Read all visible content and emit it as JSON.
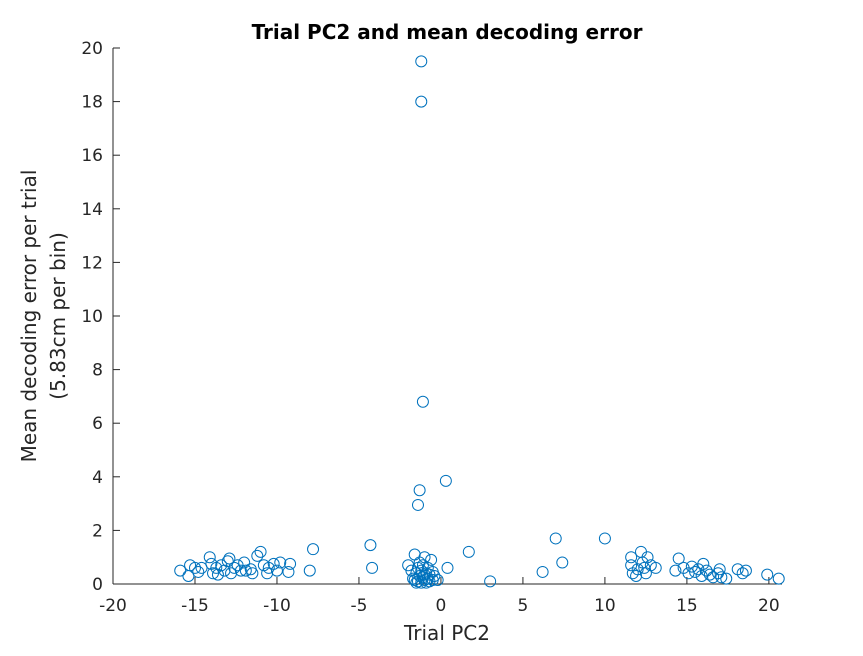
{
  "chart_data": {
    "type": "scatter",
    "title": "Trial PC2 and mean decoding error",
    "xlabel": "Trial PC2",
    "ylabel_lines": [
      "Mean decoding error per trial",
      "(5.83cm per bin)"
    ],
    "xlim": [
      -20,
      20.8
    ],
    "ylim": [
      0,
      20
    ],
    "xticks": [
      -20,
      -15,
      -10,
      -5,
      0,
      5,
      10,
      15,
      20
    ],
    "yticks": [
      0,
      2,
      4,
      6,
      8,
      10,
      12,
      14,
      16,
      18,
      20
    ],
    "grid": false,
    "marker": "open-circle",
    "series": [
      {
        "color": "#0072BD",
        "points": [
          [
            -1.2,
            19.5
          ],
          [
            -1.2,
            18.0
          ],
          [
            -1.1,
            6.8
          ],
          [
            -1.3,
            3.5
          ],
          [
            0.3,
            3.85
          ],
          [
            -1.4,
            2.95
          ],
          [
            -15.9,
            0.5
          ],
          [
            -15.4,
            0.3
          ],
          [
            -15.3,
            0.7
          ],
          [
            -15.0,
            0.6
          ],
          [
            -14.8,
            0.45
          ],
          [
            -14.6,
            0.6
          ],
          [
            -14.1,
            1.0
          ],
          [
            -14.0,
            0.75
          ],
          [
            -13.9,
            0.4
          ],
          [
            -13.7,
            0.6
          ],
          [
            -13.6,
            0.35
          ],
          [
            -13.4,
            0.7
          ],
          [
            -13.2,
            0.5
          ],
          [
            -13.0,
            0.85
          ],
          [
            -12.9,
            0.95
          ],
          [
            -12.8,
            0.4
          ],
          [
            -12.6,
            0.6
          ],
          [
            -12.4,
            0.7
          ],
          [
            -12.2,
            0.5
          ],
          [
            -12.0,
            0.8
          ],
          [
            -11.9,
            0.5
          ],
          [
            -11.6,
            0.55
          ],
          [
            -11.5,
            0.4
          ],
          [
            -11.2,
            1.05
          ],
          [
            -11.0,
            1.2
          ],
          [
            -10.8,
            0.7
          ],
          [
            -10.6,
            0.4
          ],
          [
            -10.5,
            0.6
          ],
          [
            -10.2,
            0.75
          ],
          [
            -10.0,
            0.5
          ],
          [
            -9.8,
            0.8
          ],
          [
            -9.3,
            0.45
          ],
          [
            -9.2,
            0.75
          ],
          [
            -8.0,
            0.5
          ],
          [
            -7.8,
            1.3
          ],
          [
            -4.3,
            1.45
          ],
          [
            -4.2,
            0.6
          ],
          [
            -2.0,
            0.7
          ],
          [
            -1.8,
            0.5
          ],
          [
            -1.7,
            0.2
          ],
          [
            -1.6,
            1.1
          ],
          [
            -1.5,
            0.4
          ],
          [
            -1.4,
            0.1
          ],
          [
            -1.4,
            0.6
          ],
          [
            -1.3,
            0.3
          ],
          [
            -1.3,
            0.8
          ],
          [
            -1.2,
            0.05
          ],
          [
            -1.2,
            0.5
          ],
          [
            -1.1,
            0.25
          ],
          [
            -1.1,
            0.7
          ],
          [
            -1.0,
            0.15
          ],
          [
            -1.0,
            1.0
          ],
          [
            -0.9,
            0.4
          ],
          [
            -0.9,
            0.05
          ],
          [
            -0.8,
            0.6
          ],
          [
            -0.8,
            0.2
          ],
          [
            -0.7,
            0.35
          ],
          [
            -0.7,
            0.1
          ],
          [
            -0.6,
            0.9
          ],
          [
            -0.5,
            0.45
          ],
          [
            -0.5,
            0.15
          ],
          [
            -0.4,
            0.3
          ],
          [
            -1.5,
            0.05
          ],
          [
            -1.0,
            0.35
          ],
          [
            -1.6,
            0.15
          ],
          [
            -0.2,
            0.15
          ],
          [
            0.4,
            0.6
          ],
          [
            1.7,
            1.2
          ],
          [
            3.0,
            0.1
          ],
          [
            6.2,
            0.45
          ],
          [
            7.0,
            1.7
          ],
          [
            7.4,
            0.8
          ],
          [
            10.0,
            1.7
          ],
          [
            11.6,
            1.0
          ],
          [
            11.6,
            0.7
          ],
          [
            11.7,
            0.4
          ],
          [
            11.9,
            0.3
          ],
          [
            12.0,
            0.55
          ],
          [
            12.2,
            1.2
          ],
          [
            12.3,
            0.8
          ],
          [
            12.4,
            0.6
          ],
          [
            12.5,
            0.4
          ],
          [
            12.6,
            1.0
          ],
          [
            12.8,
            0.7
          ],
          [
            13.1,
            0.6
          ],
          [
            14.3,
            0.5
          ],
          [
            14.5,
            0.95
          ],
          [
            14.8,
            0.6
          ],
          [
            15.1,
            0.4
          ],
          [
            15.3,
            0.65
          ],
          [
            15.5,
            0.45
          ],
          [
            15.7,
            0.55
          ],
          [
            15.9,
            0.3
          ],
          [
            16.0,
            0.75
          ],
          [
            16.2,
            0.5
          ],
          [
            16.4,
            0.35
          ],
          [
            16.6,
            0.25
          ],
          [
            16.9,
            0.4
          ],
          [
            17.0,
            0.55
          ],
          [
            17.1,
            0.25
          ],
          [
            17.4,
            0.2
          ],
          [
            18.1,
            0.55
          ],
          [
            18.4,
            0.4
          ],
          [
            18.6,
            0.5
          ],
          [
            19.9,
            0.35
          ],
          [
            20.6,
            0.2
          ]
        ]
      }
    ]
  }
}
